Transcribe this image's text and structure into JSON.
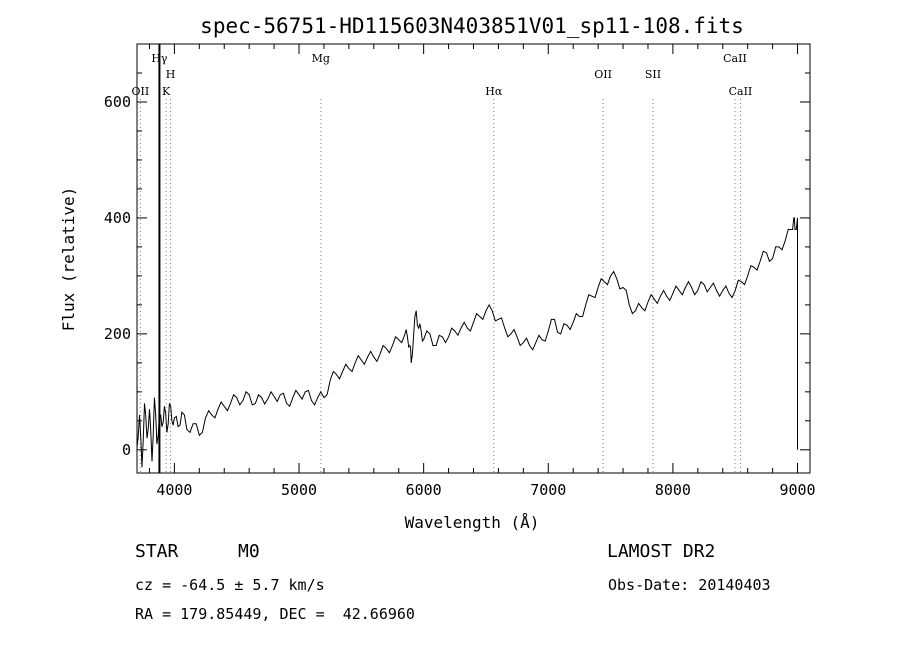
{
  "chart_data": {
    "type": "line",
    "title": "spec-56751-HD115603N403851V01_sp11-108.fits",
    "xlabel": "Wavelength (Å)",
    "ylabel": "Flux (relative)",
    "xlim": [
      3700,
      9100
    ],
    "ylim": [
      -40,
      700
    ],
    "x_ticks": [
      4000,
      5000,
      6000,
      7000,
      8000,
      9000
    ],
    "y_ticks": [
      0,
      200,
      400,
      600
    ],
    "grid": false,
    "series": [
      {
        "x": [
          3700,
          3720,
          3740,
          3760,
          3780,
          3800,
          3820,
          3840,
          3860,
          3880,
          3900,
          3920,
          3940,
          3960,
          3980,
          4000,
          4030,
          4060,
          4100,
          4150,
          4200,
          4250,
          4300,
          4350,
          4400,
          4450,
          4500,
          4550,
          4600,
          4650,
          4700,
          4750,
          4800,
          4850,
          4900,
          4950,
          5000,
          5050,
          5100,
          5150,
          5200,
          5250,
          5300,
          5350,
          5400,
          5450,
          5500,
          5550,
          5600,
          5650,
          5700,
          5750,
          5800,
          5850,
          5870,
          5890,
          5900,
          5920,
          5940,
          5960,
          5980,
          6000,
          6050,
          6100,
          6150,
          6200,
          6250,
          6300,
          6350,
          6400,
          6450,
          6500,
          6550,
          6600,
          6650,
          6700,
          6750,
          6800,
          6850,
          6900,
          6950,
          7000,
          7050,
          7100,
          7150,
          7200,
          7250,
          7300,
          7350,
          7400,
          7450,
          7500,
          7550,
          7600,
          7650,
          7700,
          7750,
          7800,
          7850,
          7900,
          7950,
          8000,
          8050,
          8100,
          8150,
          8200,
          8250,
          8300,
          8350,
          8400,
          8450,
          8500,
          8550,
          8600,
          8650,
          8700,
          8750,
          8800,
          8850,
          8900,
          8950,
          8970,
          8980,
          9000
        ],
        "y": [
          5,
          60,
          -30,
          80,
          20,
          70,
          -20,
          90,
          10,
          60,
          40,
          75,
          30,
          80,
          50,
          55,
          40,
          65,
          35,
          45,
          25,
          55,
          60,
          70,
          75,
          80,
          90,
          85,
          95,
          80,
          90,
          88,
          92,
          95,
          80,
          90,
          95,
          100,
          85,
          90,
          90,
          120,
          130,
          135,
          140,
          150,
          155,
          160,
          160,
          165,
          175,
          180,
          190,
          200,
          195,
          180,
          150,
          200,
          240,
          210,
          205,
          190,
          200,
          180,
          195,
          195,
          205,
          210,
          210,
          220,
          230,
          240,
          240,
          225,
          210,
          200,
          195,
          185,
          180,
          185,
          190,
          205,
          225,
          200,
          215,
          220,
          230,
          250,
          265,
          280,
          290,
          300,
          295,
          280,
          250,
          240,
          245,
          255,
          260,
          265,
          265,
          270,
          275,
          280,
          280,
          275,
          285,
          280,
          275,
          275,
          270,
          275,
          290,
          300,
          315,
          325,
          340,
          330,
          350,
          360,
          380,
          400,
          380,
          400
        ]
      }
    ],
    "spectral_lines": [
      {
        "label": "OII",
        "x": 3727
      },
      {
        "label": "Hγ",
        "x": 3880
      },
      {
        "label": "K",
        "x": 3934
      },
      {
        "label": "H",
        "x": 3969
      },
      {
        "label": "Mg",
        "x": 5175
      },
      {
        "label": "Hα",
        "x": 6563
      },
      {
        "label": "OII",
        "x": 7440
      },
      {
        "label": "SII",
        "x": 7840
      },
      {
        "label": "CaII",
        "x": 8498
      },
      {
        "label": "CaII",
        "x": 8542
      }
    ]
  },
  "info": {
    "class_label": "STAR",
    "subclass_label": "M0",
    "survey": "LAMOST DR2",
    "cz": "cz = -64.5 ± 5.7 km/s",
    "obs_date": "Obs-Date: 20140403",
    "coords": "RA = 179.85449, DEC =  42.66960"
  }
}
